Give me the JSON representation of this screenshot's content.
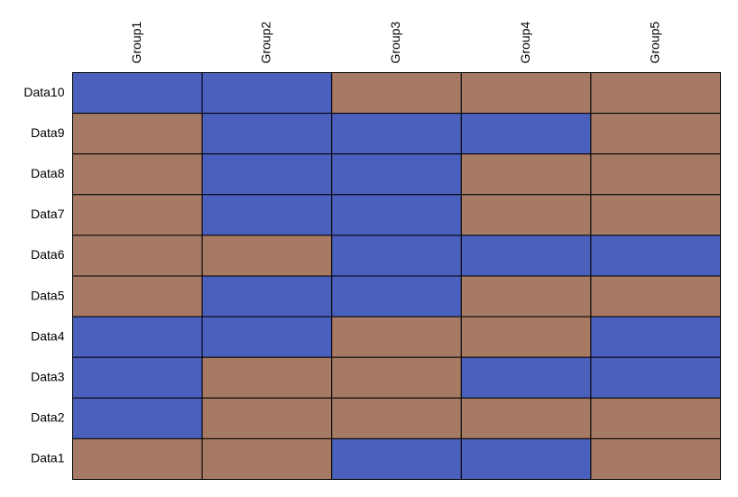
{
  "chart_data": {
    "type": "heatmap",
    "title": "",
    "xlabel": "",
    "ylabel": "",
    "columns": [
      "Group1",
      "Group2",
      "Group3",
      "Group4",
      "Group5"
    ],
    "rows": [
      "Data10",
      "Data9",
      "Data8",
      "Data7",
      "Data6",
      "Data5",
      "Data4",
      "Data3",
      "Data2",
      "Data1"
    ],
    "values": [
      [
        1,
        1,
        0,
        0,
        0
      ],
      [
        0,
        1,
        1,
        1,
        0
      ],
      [
        0,
        1,
        1,
        0,
        0
      ],
      [
        0,
        1,
        1,
        0,
        0
      ],
      [
        0,
        0,
        1,
        1,
        1
      ],
      [
        0,
        1,
        1,
        0,
        0
      ],
      [
        1,
        1,
        0,
        0,
        1
      ],
      [
        1,
        0,
        0,
        1,
        1
      ],
      [
        1,
        0,
        0,
        0,
        0
      ],
      [
        0,
        0,
        1,
        1,
        0
      ]
    ],
    "colors": {
      "0": "#a67a63",
      "1": "#4a60bd"
    },
    "legend": "none",
    "grid": true,
    "x_tick_position": "top",
    "x_tick_rotation": -90
  }
}
